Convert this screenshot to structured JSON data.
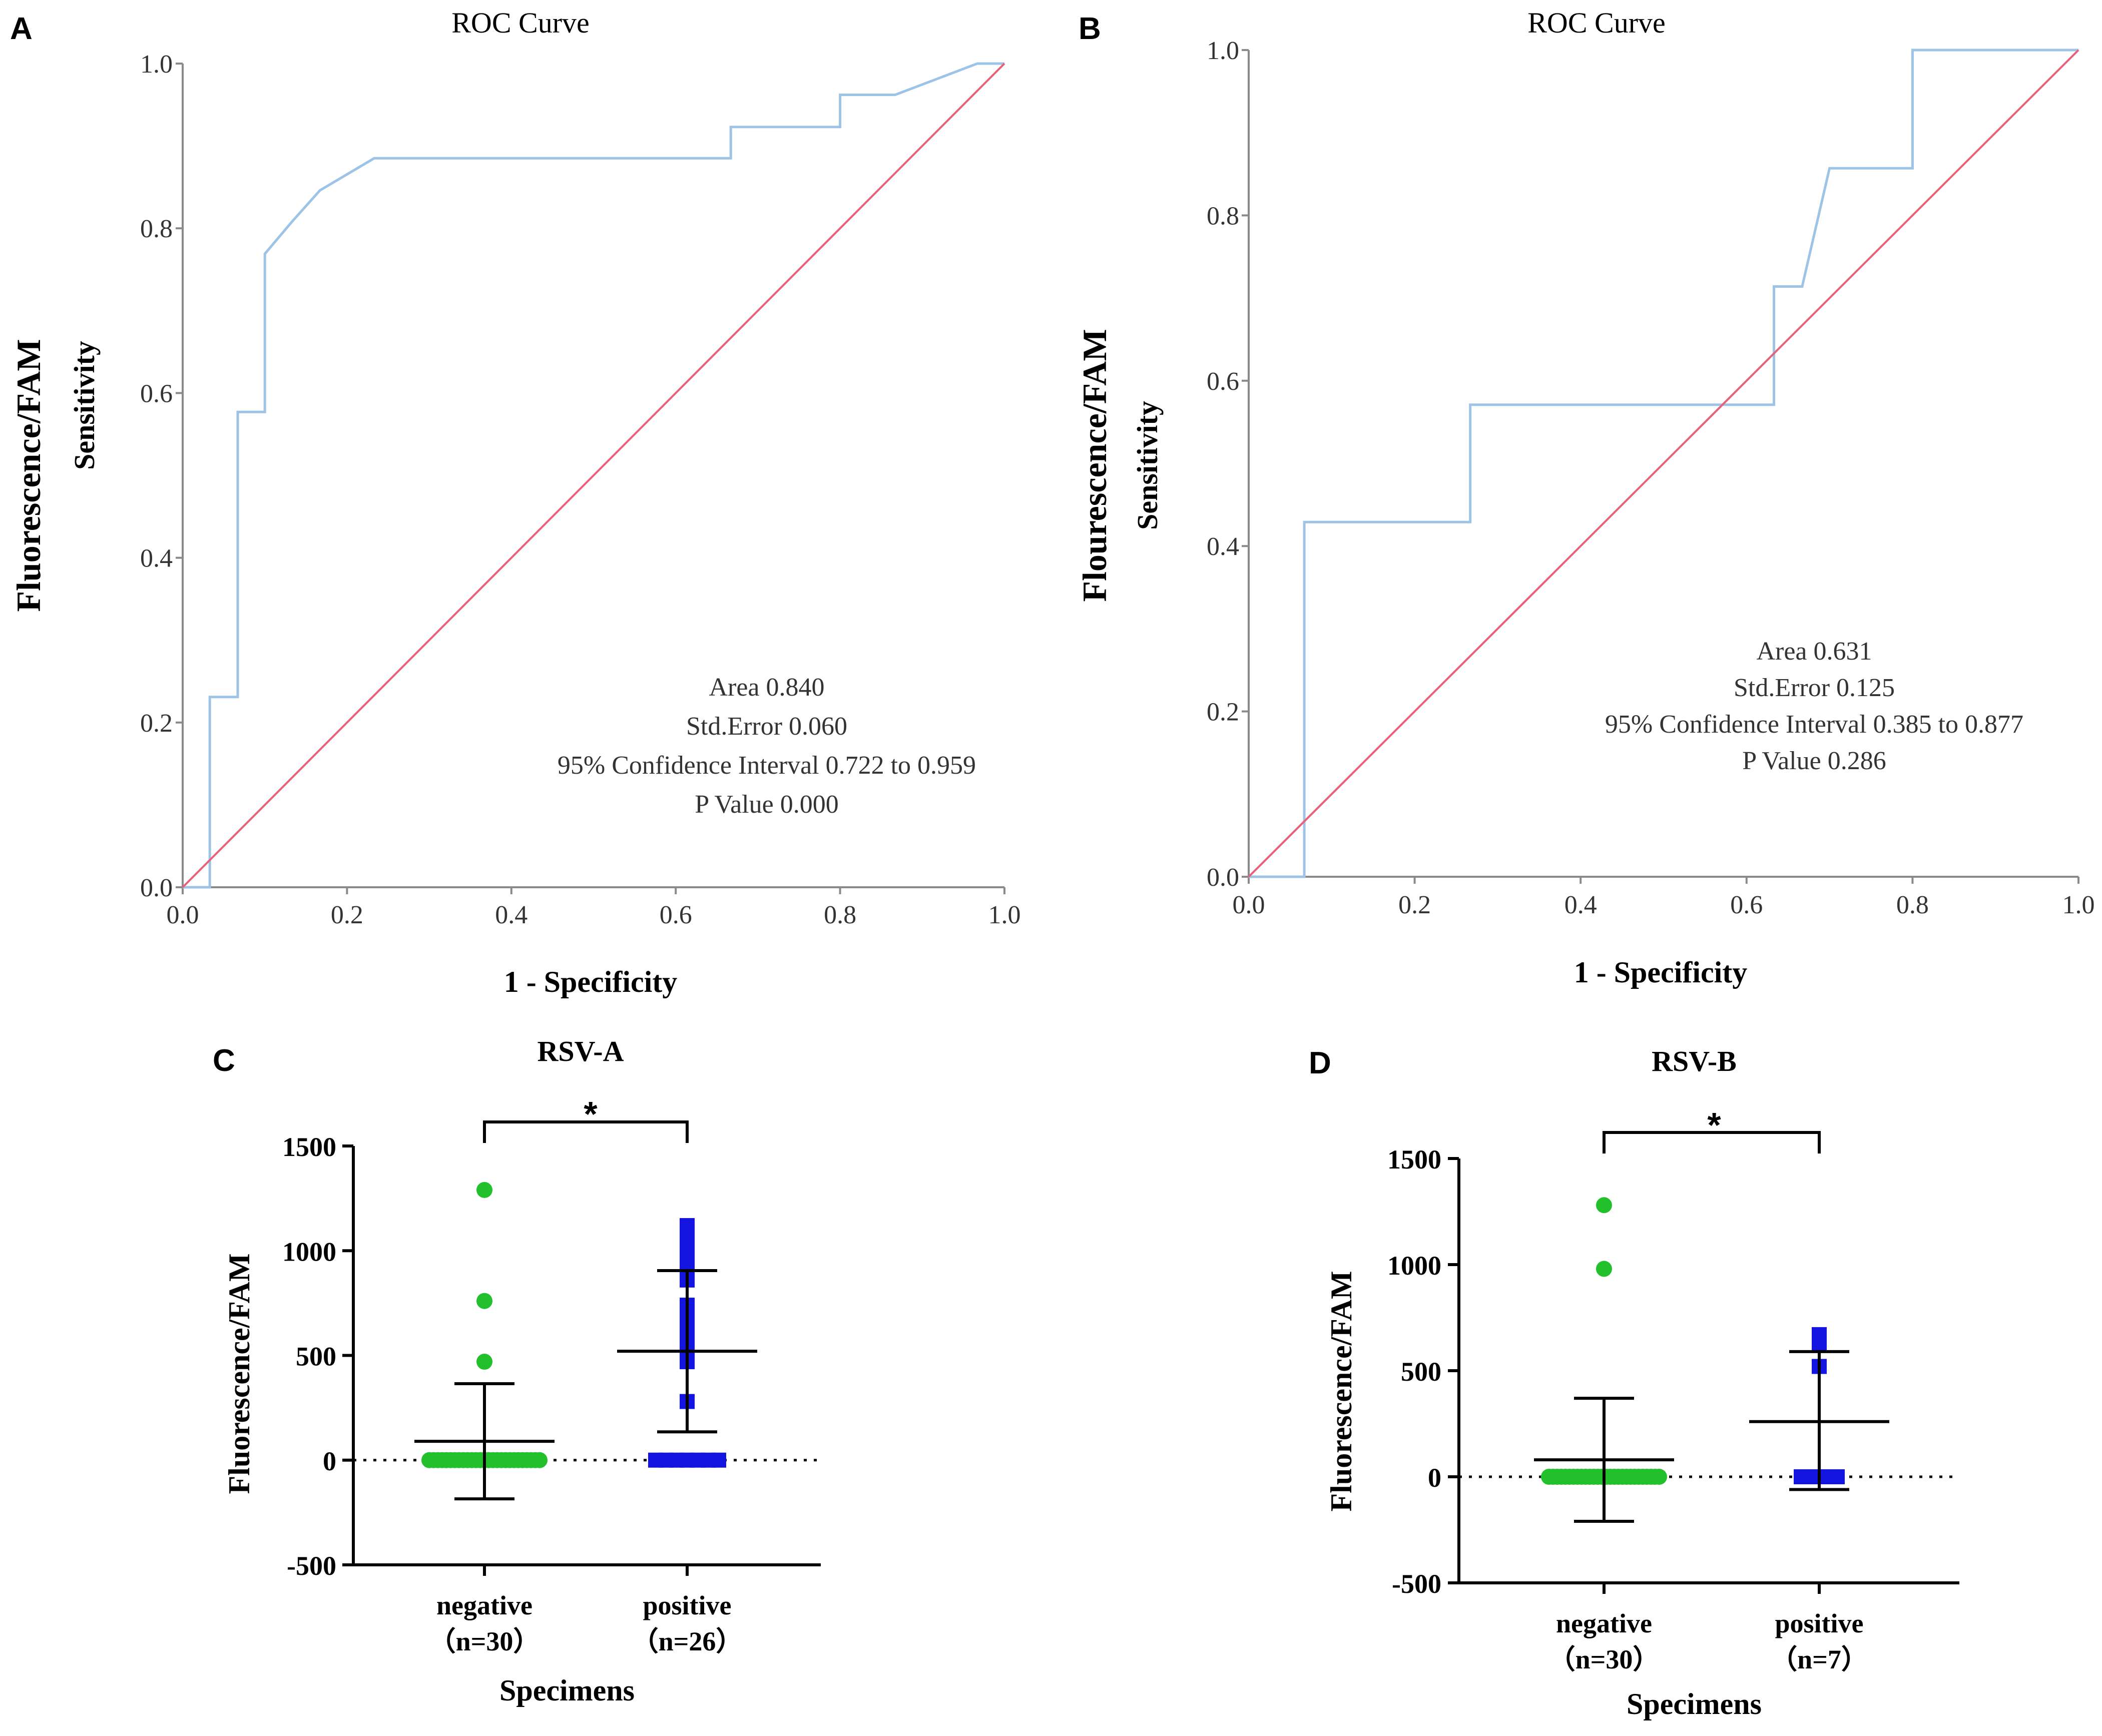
{
  "chart_data": [
    {
      "panel": "A",
      "type": "line",
      "title": "ROC Curve",
      "xlabel": "1 - Specificity",
      "ylabel": "Sensitivity",
      "outer_ylabel": "Fluorescence/FAM",
      "xlim": [
        0,
        1
      ],
      "ylim": [
        0,
        1
      ],
      "xticks": [
        "0.0",
        "0.2",
        "0.4",
        "0.6",
        "0.8",
        "1.0"
      ],
      "yticks": [
        "0.0",
        "0.2",
        "0.4",
        "0.6",
        "0.8",
        "1.0"
      ],
      "series": [
        {
          "name": "ROC",
          "color": "#9dc3e6",
          "x": [
            0,
            0.033,
            0.033,
            0.067,
            0.067,
            0.1,
            0.1,
            0.133,
            0.167,
            0.233,
            0.667,
            0.667,
            0.8,
            0.8,
            0.867,
            0.967,
            1.0
          ],
          "y": [
            0,
            0,
            0.231,
            0.231,
            0.577,
            0.577,
            0.769,
            0.808,
            0.846,
            0.885,
            0.885,
            0.923,
            0.923,
            0.962,
            0.962,
            1.0,
            1.0
          ]
        },
        {
          "name": "Reference",
          "color": "#e8607a",
          "x": [
            0,
            1
          ],
          "y": [
            0,
            1
          ]
        }
      ],
      "annotation": [
        "Area 0.840",
        "Std.Error 0.060",
        "95% Confidence Interval 0.722 to 0.959",
        "P Value 0.000"
      ]
    },
    {
      "panel": "B",
      "type": "line",
      "title": "ROC Curve",
      "xlabel": "1 - Specificity",
      "ylabel": "Sensitivity",
      "outer_ylabel": "Flourescence/FAM",
      "xlim": [
        0,
        1
      ],
      "ylim": [
        0,
        1
      ],
      "xticks": [
        "0.0",
        "0.2",
        "0.4",
        "0.6",
        "0.8",
        "1.0"
      ],
      "yticks": [
        "0.0",
        "0.2",
        "0.4",
        "0.6",
        "0.8",
        "1.0"
      ],
      "series": [
        {
          "name": "ROC",
          "color": "#9dc3e6",
          "x": [
            0,
            0.067,
            0.067,
            0.267,
            0.267,
            0.633,
            0.633,
            0.667,
            0.7,
            0.8,
            0.8,
            1.0
          ],
          "y": [
            0,
            0,
            0.429,
            0.429,
            0.571,
            0.571,
            0.714,
            0.714,
            0.857,
            0.857,
            1.0,
            1.0
          ]
        },
        {
          "name": "Reference",
          "color": "#e8607a",
          "x": [
            0,
            1
          ],
          "y": [
            0,
            1
          ]
        }
      ],
      "annotation": [
        "Area 0.631",
        "Std.Error 0.125",
        "95% Confidence Interval 0.385 to 0.877",
        "P Value 0.286"
      ]
    },
    {
      "panel": "C",
      "type": "scatter",
      "title": "RSV-A",
      "xlabel": "Specimens",
      "ylabel": "Fluorescence/FAM",
      "ylim": [
        -500,
        1500
      ],
      "yticks": [
        "1500",
        "1000",
        "500",
        "0",
        "-500"
      ],
      "significance": "*",
      "groups": [
        {
          "name": "negative",
          "n_label": "（n=30）",
          "color": "#22c02a",
          "marker": "circle",
          "mean": 90,
          "sd_upper": 365,
          "sd_lower": -185,
          "values": [
            1290,
            760,
            470,
            0,
            0,
            0,
            0,
            0,
            0,
            0,
            0,
            0,
            0,
            0,
            0,
            0,
            0,
            0,
            0,
            0,
            0,
            0,
            0,
            0,
            0,
            0,
            0,
            0,
            0,
            0
          ]
        },
        {
          "name": "positive",
          "n_label": "（n=26）",
          "color": "#1414e0",
          "marker": "square",
          "mean": 520,
          "sd_upper": 905,
          "sd_lower": 135,
          "values": [
            1120,
            1060,
            1040,
            990,
            970,
            930,
            860,
            740,
            720,
            700,
            680,
            620,
            610,
            560,
            510,
            500,
            480,
            470,
            280,
            0,
            0,
            0,
            0,
            0,
            0,
            0
          ]
        }
      ]
    },
    {
      "panel": "D",
      "type": "scatter",
      "title": "RSV-B",
      "xlabel": "Specimens",
      "ylabel": "Fluorescence/FAM",
      "ylim": [
        -500,
        1500
      ],
      "yticks": [
        "1500",
        "1000",
        "500",
        "0",
        "-500"
      ],
      "significance": "*",
      "groups": [
        {
          "name": "negative",
          "n_label": "（n=30）",
          "color": "#22c02a",
          "marker": "circle",
          "mean": 80,
          "sd_upper": 370,
          "sd_lower": -210,
          "values": [
            1280,
            980,
            0,
            0,
            0,
            0,
            0,
            0,
            0,
            0,
            0,
            0,
            0,
            0,
            0,
            0,
            0,
            0,
            0,
            0,
            0,
            0,
            0,
            0,
            0,
            0,
            0,
            0,
            0,
            0
          ]
        },
        {
          "name": "positive",
          "n_label": "（n=7）",
          "color": "#1414e0",
          "marker": "square",
          "mean": 260,
          "sd_upper": 590,
          "sd_lower": -60,
          "values": [
            670,
            630,
            520,
            0,
            0,
            0,
            0
          ]
        }
      ]
    }
  ],
  "panel_labels": [
    "A",
    "B",
    "C",
    "D"
  ]
}
